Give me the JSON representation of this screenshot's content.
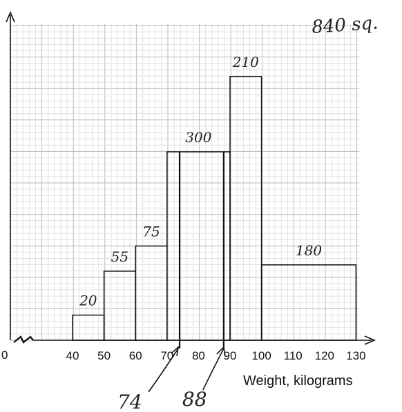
{
  "chart_data": {
    "type": "histogram",
    "xlabel": "Weight, kilograms",
    "origin_label": "0",
    "x_ticks": [
      40,
      50,
      60,
      70,
      80,
      90,
      100,
      110,
      120,
      130
    ],
    "xlim": [
      40,
      130
    ],
    "grid": true,
    "bins": [
      {
        "start": 40,
        "end": 50,
        "frequency": 20,
        "frequency_density": 2,
        "label": "20"
      },
      {
        "start": 50,
        "end": 60,
        "frequency": 55,
        "frequency_density": 5.5,
        "label": "55"
      },
      {
        "start": 60,
        "end": 70,
        "frequency": 75,
        "frequency_density": 7.5,
        "label": "75"
      },
      {
        "start": 70,
        "end": 90,
        "frequency": 300,
        "frequency_density": 15,
        "label": "300"
      },
      {
        "start": 90,
        "end": 100,
        "frequency": 210,
        "frequency_density": 21,
        "label": "210"
      },
      {
        "start": 100,
        "end": 130,
        "frequency": 180,
        "frequency_density": 6,
        "label": "180"
      }
    ],
    "marker_lines": [
      {
        "x": 74,
        "label": "74"
      },
      {
        "x": 88,
        "label": "88"
      }
    ],
    "annotations": {
      "total": "840 sq."
    }
  },
  "colors": {
    "grid_major": "#b8b8b8",
    "grid_minor": "#e2e2e2",
    "ink": "#111111"
  }
}
